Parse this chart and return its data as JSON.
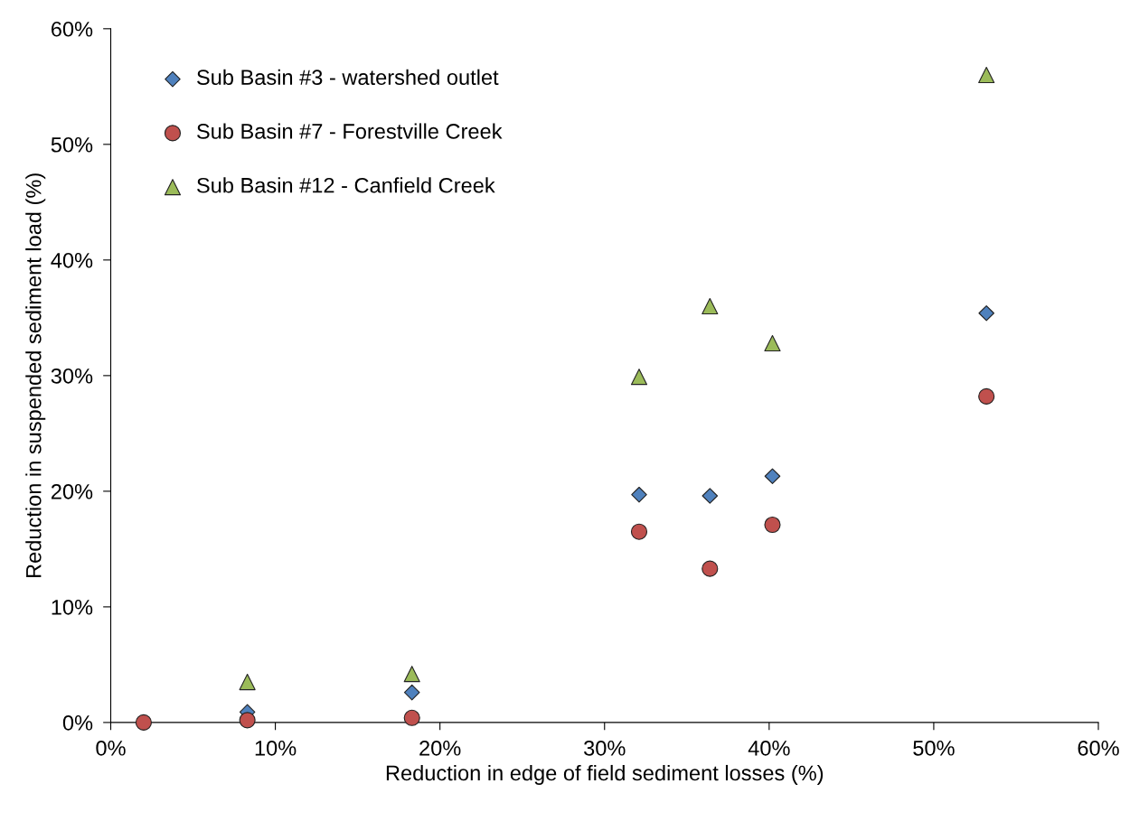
{
  "chart_data": {
    "type": "scatter",
    "xlabel": "Reduction in edge of field sediment losses (%)",
    "ylabel": "Reduction in suspended sediment load (%)",
    "x": [
      2.0,
      8.3,
      18.3,
      32.1,
      36.4,
      40.2,
      53.2
    ],
    "series": [
      {
        "name": "Sub Basin #3 - watershed outlet",
        "color": "#4f81bd",
        "marker": "diamond",
        "values": [
          null,
          0.9,
          2.6,
          19.7,
          19.6,
          21.3,
          35.4
        ]
      },
      {
        "name": "Sub Basin #7 - Forestville Creek",
        "color": "#c0504d",
        "marker": "circle",
        "values": [
          0,
          0.2,
          0.4,
          16.5,
          13.3,
          17.1,
          28.2
        ]
      },
      {
        "name": "Sub Basin #12 - Canfield Creek",
        "color": "#9bbb59",
        "marker": "triangle",
        "values": [
          null,
          3.5,
          4.2,
          29.9,
          36.0,
          32.8,
          56.0
        ]
      }
    ],
    "xlim": [
      0,
      60
    ],
    "ylim": [
      0,
      60
    ],
    "xticks": [
      {
        "value": 0,
        "label": "0%"
      },
      {
        "value": 10,
        "label": "10%"
      },
      {
        "value": 20,
        "label": "20%"
      },
      {
        "value": 30,
        "label": "30%"
      },
      {
        "value": 40,
        "label": "40%"
      },
      {
        "value": 50,
        "label": "50%"
      },
      {
        "value": 60,
        "label": "60%"
      }
    ],
    "yticks": [
      {
        "value": 0,
        "label": "0%"
      },
      {
        "value": 10,
        "label": "10%"
      },
      {
        "value": 20,
        "label": "20%"
      },
      {
        "value": 30,
        "label": "30%"
      },
      {
        "value": 40,
        "label": "40%"
      },
      {
        "value": 50,
        "label": "50%"
      },
      {
        "value": 60,
        "label": "60%"
      }
    ],
    "grid": false,
    "legend": "top left"
  }
}
